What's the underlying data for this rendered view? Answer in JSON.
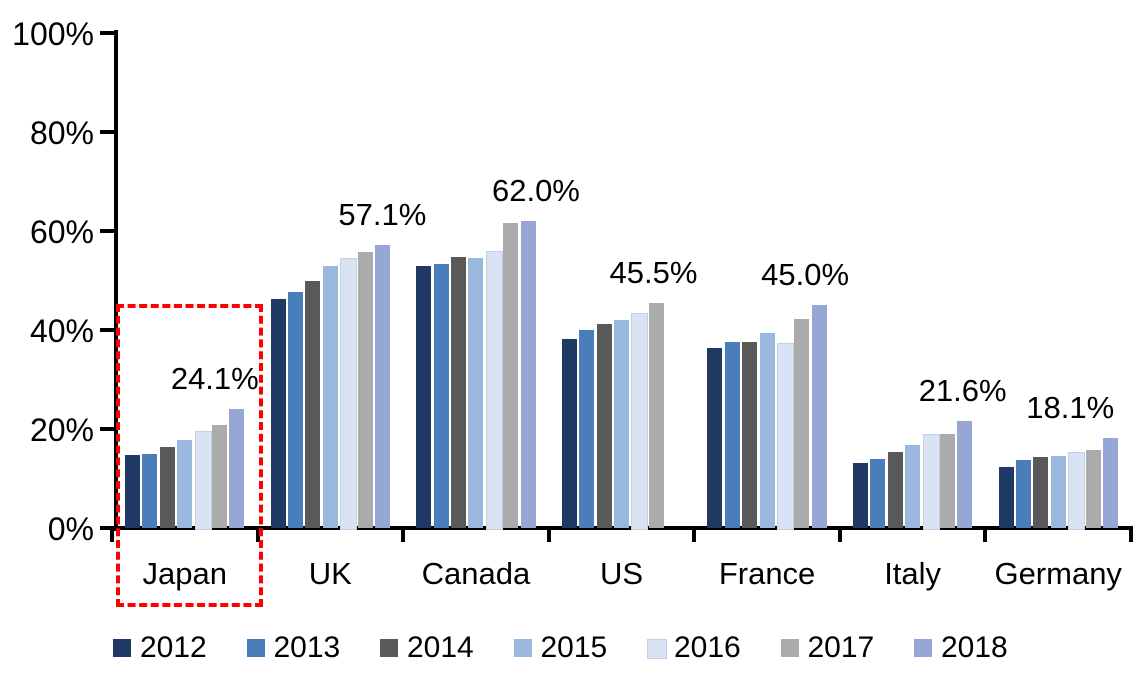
{
  "chart_data": {
    "type": "bar",
    "title": "",
    "xlabel": "",
    "ylabel": "",
    "ylim": [
      0,
      100
    ],
    "grid": false,
    "legend_position": "bottom",
    "yticks": [
      "0%",
      "20%",
      "40%",
      "60%",
      "80%",
      "100%"
    ],
    "categories": [
      "Japan",
      "UK",
      "Canada",
      "US",
      "France",
      "Italy",
      "Germany"
    ],
    "series": [
      {
        "name": "2012",
        "color": "#1f3864",
        "values": [
          14.7,
          46.3,
          52.9,
          38.2,
          36.4,
          13.2,
          12.4
        ]
      },
      {
        "name": "2013",
        "color": "#4a7ebb",
        "values": [
          14.9,
          47.6,
          53.3,
          40.0,
          37.6,
          14.0,
          13.8
        ]
      },
      {
        "name": "2014",
        "color": "#595959",
        "values": [
          16.4,
          49.8,
          54.7,
          41.2,
          37.6,
          15.3,
          14.3
        ]
      },
      {
        "name": "2015",
        "color": "#9ab7de",
        "values": [
          17.8,
          53.0,
          54.5,
          42.0,
          39.3,
          16.8,
          14.6
        ]
      },
      {
        "name": "2016",
        "color": "#dae3f3",
        "values": [
          19.6,
          54.6,
          56.0,
          43.5,
          37.3,
          18.9,
          15.4
        ]
      },
      {
        "name": "2017",
        "color": "#ababab",
        "values": [
          20.9,
          55.8,
          61.6,
          45.5,
          42.3,
          19.0,
          15.8
        ]
      },
      {
        "name": "2018",
        "color": "#96a7d6",
        "values": [
          24.1,
          57.1,
          62.0,
          null,
          45.0,
          21.6,
          18.1
        ]
      }
    ],
    "value_labels": [
      "24.1%",
      "57.1%",
      "62.0%",
      "45.5%",
      "45.0%",
      "21.6%",
      "18.1%"
    ],
    "annotation": {
      "shape": "dashed-rectangle",
      "color": "#ff0000",
      "target_category": "Japan"
    }
  },
  "colors": {
    "axis": "#000000",
    "text": "#000000",
    "highlight": "#ff0000",
    "background": "#ffffff"
  }
}
